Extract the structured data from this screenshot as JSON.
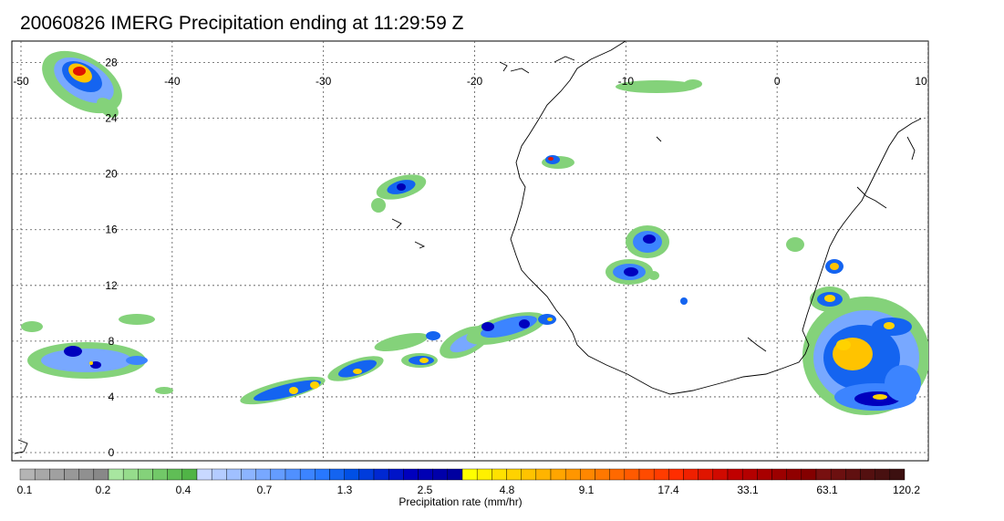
{
  "title": "20060826 IMERG Precipitation ending at 11:29:59 Z",
  "map": {
    "lon_range": [
      -50,
      10
    ],
    "lat_range": [
      -0.5,
      30
    ],
    "lon_ticks": [
      "-50",
      "-40",
      "-30",
      "-20",
      "-10",
      "0",
      "10"
    ],
    "lat_ticks": [
      "0",
      "4",
      "8",
      "12",
      "16",
      "20",
      "24",
      "28"
    ],
    "gridlines": "dotted",
    "coastline_color": "#000000"
  },
  "colorbar": {
    "label": "Precipitation rate (mm/hr)",
    "tick_labels": [
      "0.1",
      "0.2",
      "0.4",
      "0.7",
      "1.3",
      "2.5",
      "4.8",
      "9.1",
      "17.4",
      "33.1",
      "63.1",
      "120.2"
    ],
    "colors": [
      "#b4b4b4",
      "#a8a8a8",
      "#a0a0a0",
      "#989898",
      "#909090",
      "#888888",
      "#a8e6a0",
      "#96dc8c",
      "#84d27a",
      "#72c868",
      "#60be56",
      "#50b446",
      "#c8d8ff",
      "#b4ccff",
      "#a0c0ff",
      "#8cb4ff",
      "#78a8ff",
      "#649cff",
      "#5090ff",
      "#3c84ff",
      "#2878ff",
      "#1464f0",
      "#0050e6",
      "#003cdc",
      "#0028d2",
      "#0014c8",
      "#0000be",
      "#0000b4",
      "#0000aa",
      "#0000a0",
      "#ffff00",
      "#fff000",
      "#ffe100",
      "#ffd200",
      "#ffc300",
      "#ffb400",
      "#ffa500",
      "#ff9600",
      "#ff8700",
      "#ff7800",
      "#ff6900",
      "#ff5a00",
      "#ff4b00",
      "#ff3c00",
      "#ff2d00",
      "#f02000",
      "#e01500",
      "#d00a00",
      "#c00000",
      "#b40000",
      "#a80000",
      "#9c0000",
      "#900000",
      "#840000",
      "#781010",
      "#6c1010",
      "#601010",
      "#541010",
      "#481010",
      "#3c1010"
    ]
  }
}
